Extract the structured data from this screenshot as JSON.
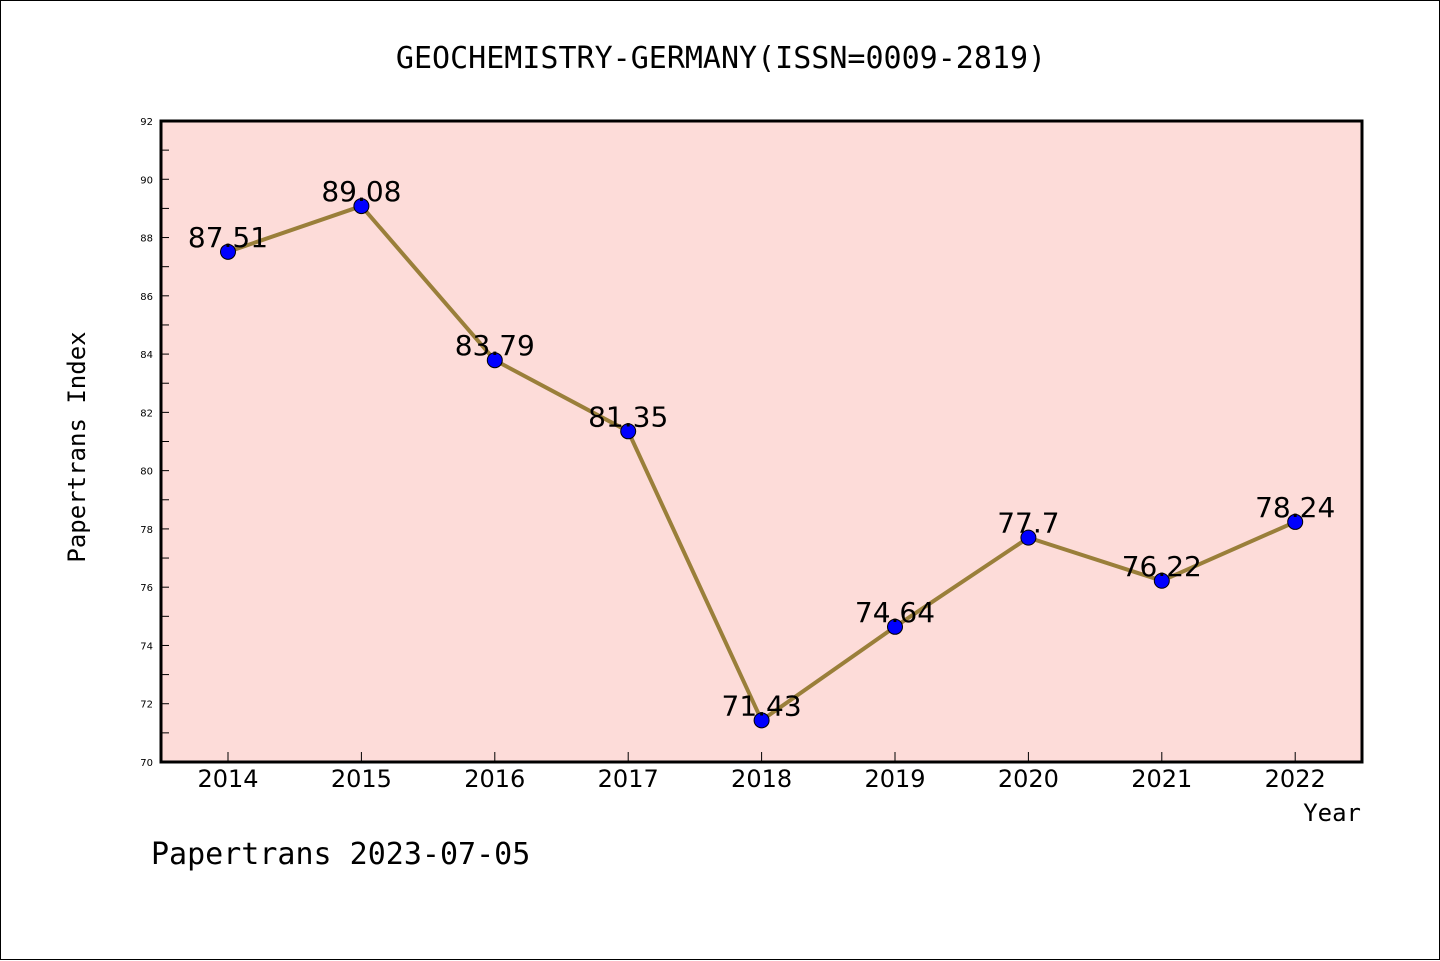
{
  "chart_data": {
    "type": "line",
    "title": "GEOCHEMISTRY-GERMANY(ISSN=0009-2819)",
    "xlabel": "Year",
    "ylabel": "Papertrans Index",
    "categories": [
      "2014",
      "2015",
      "2016",
      "2017",
      "2018",
      "2019",
      "2020",
      "2021",
      "2022"
    ],
    "values": [
      87.51,
      89.08,
      83.79,
      81.35,
      71.43,
      74.64,
      77.7,
      76.22,
      78.24
    ],
    "data_labels": [
      "87.51",
      "89.08",
      "83.79",
      "81.35",
      "71.43",
      "74.64",
      "77.7",
      "76.22",
      "78.24"
    ],
    "ylim": [
      70,
      92
    ],
    "yticks": [
      "70",
      "72",
      "74",
      "76",
      "78",
      "80",
      "82",
      "84",
      "86",
      "88",
      "90",
      "92"
    ],
    "grid": false,
    "line_color": "#9a7f3a",
    "marker_color": "#0000ff",
    "plot_background": "#fddcd9"
  },
  "footer": {
    "credit": "Papertrans 2023-07-05"
  }
}
